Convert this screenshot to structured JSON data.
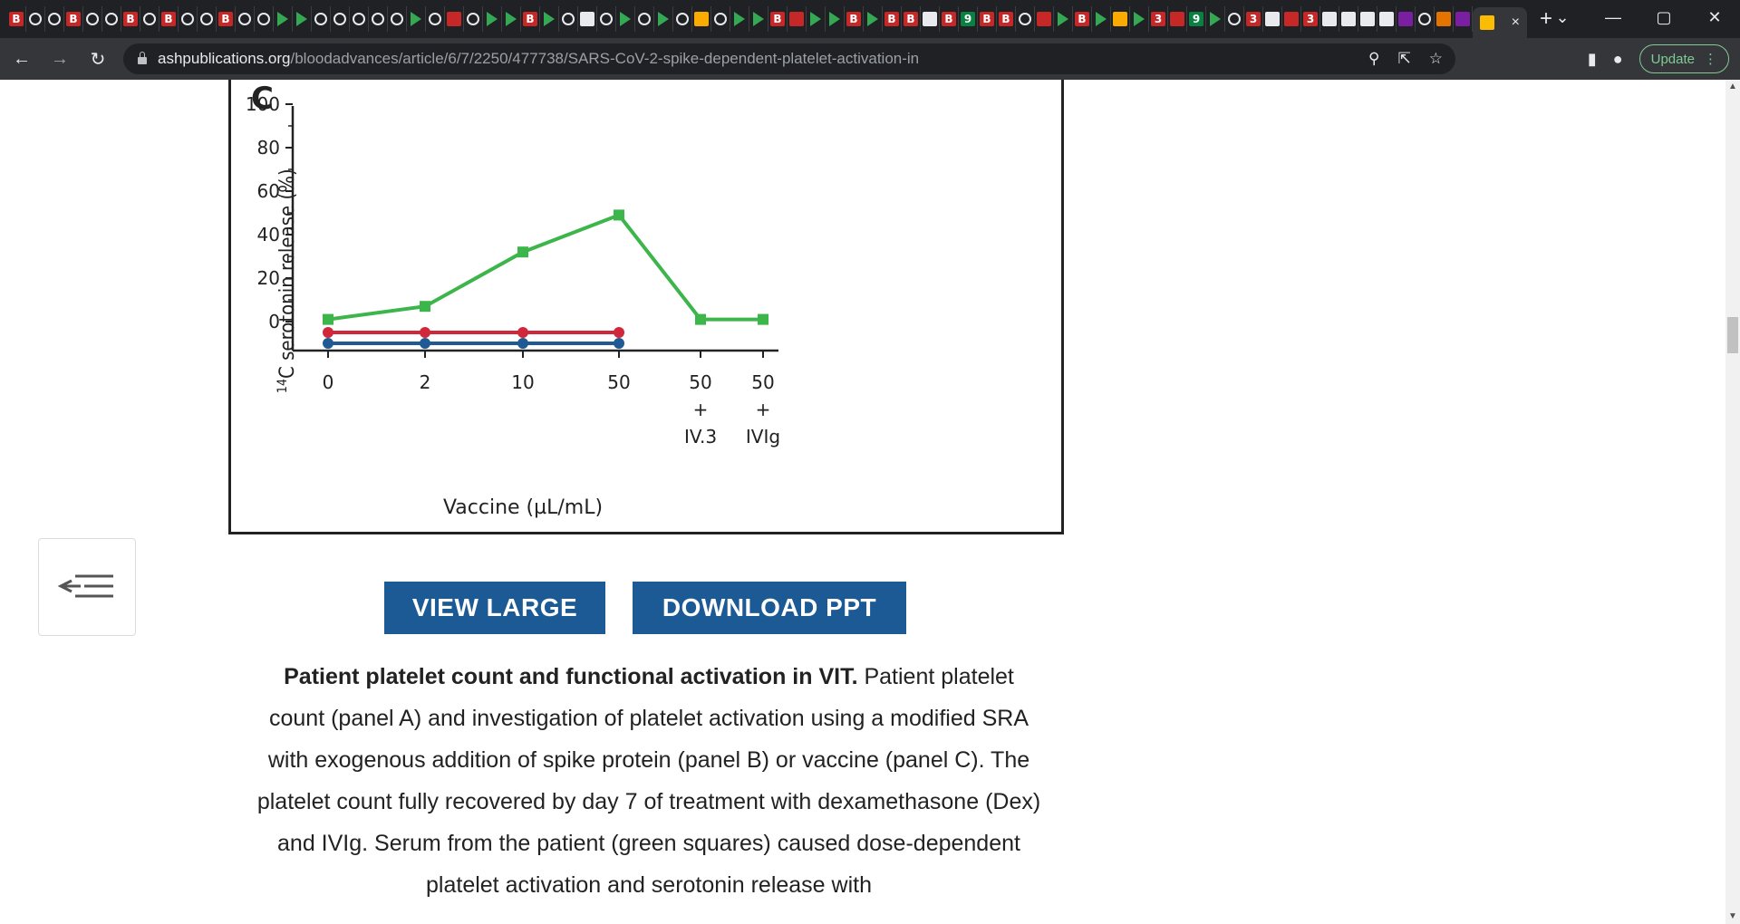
{
  "browser": {
    "tab_favicons": [
      "B",
      "S",
      "S",
      "B",
      "S",
      "S",
      "B",
      "S",
      "B",
      "S",
      "S",
      "B",
      "S",
      "S",
      "D",
      "D",
      "S",
      "S",
      "S",
      "S",
      "S",
      "D",
      "S",
      "r",
      "S",
      "D",
      "D",
      "B",
      "D",
      "S",
      "w",
      "S",
      "D",
      "S",
      "D",
      "S",
      "y",
      "S",
      "D",
      "D",
      "B",
      "r",
      "D",
      "D",
      "B",
      "D",
      "B",
      "B",
      "w",
      "B",
      "9",
      "B",
      "B",
      "S",
      "r",
      "D",
      "B",
      "D",
      "y",
      "D",
      "3",
      "r",
      "9",
      "D",
      "S",
      "3",
      "w",
      "r",
      "3",
      "q",
      "w",
      "w",
      "q",
      "p",
      "S",
      "o",
      "p"
    ],
    "active_tab_close": "×",
    "new_tab": "+",
    "window_controls": [
      "⌄",
      "—",
      "▢",
      "✕"
    ],
    "url_host": "ashpublications.org",
    "url_path": "/bloodadvances/article/6/7/2250/477738/SARS-CoV-2-spike-dependent-platelet-activation-in",
    "update_label": "Update"
  },
  "figure": {
    "panel_letter": "C",
    "ylabel_sup": "14",
    "ylabel_rest": "C serotonin release (%)",
    "xlabel": "Vaccine (µL/mL)"
  },
  "chart_data": {
    "type": "line",
    "categories": [
      "0",
      "2",
      "10",
      "50",
      "50\n+\nIV.3",
      "50\n+\nIVIg"
    ],
    "yticks": [
      0,
      20,
      40,
      60,
      80,
      100
    ],
    "ylim": [
      -13,
      105
    ],
    "series": [
      {
        "color": "#3cb54a",
        "marker": "square",
        "values": [
          1,
          7,
          32,
          49,
          1,
          1
        ]
      },
      {
        "color": "#d0273a",
        "marker": "circle",
        "values": [
          -5,
          -5,
          -5,
          -5,
          null,
          null
        ]
      },
      {
        "color": "#1f5a94",
        "marker": "circle",
        "values": [
          -10,
          -10,
          -10,
          -10,
          null,
          null
        ]
      }
    ],
    "grid": false,
    "legend": "none"
  },
  "buttons": {
    "view_large": "VIEW LARGE",
    "download_ppt": "DOWNLOAD PPT"
  },
  "caption": {
    "bold": "Patient platelet count and functional activation in VIT.",
    "text": " Patient platelet count (panel A) and investigation of platelet activation using a modified SRA with exogenous addition of spike protein (panel B) or vaccine (panel C). The platelet count fully recovered by day 7 of treatment with dexamethasone (Dex) and IVIg. Serum from the patient (green squares) caused dose-dependent platelet activation and serotonin release with"
  }
}
